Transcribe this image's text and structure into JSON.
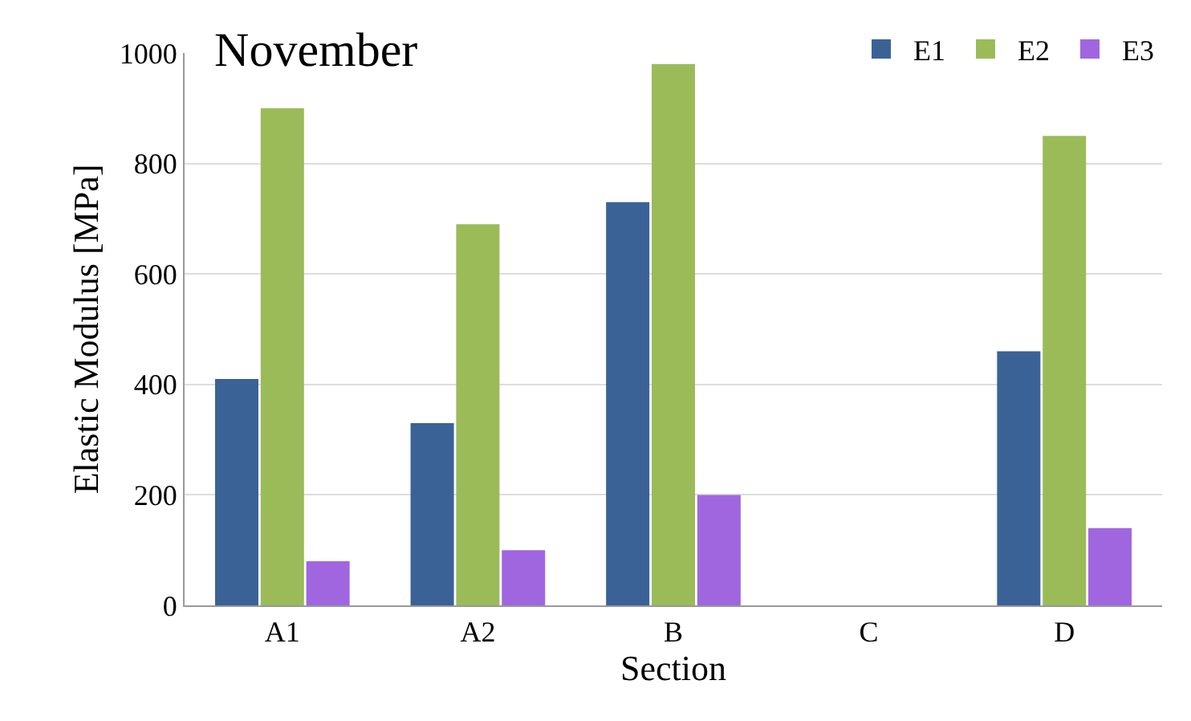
{
  "chart_data": {
    "type": "bar",
    "title": "November",
    "xlabel": "Section",
    "ylabel": "Elastic Modulus [MPa]",
    "categories": [
      "A1",
      "A2",
      "B",
      "C",
      "D"
    ],
    "series": [
      {
        "name": "E1",
        "color": "#3b6296",
        "values": [
          410,
          330,
          730,
          null,
          460
        ]
      },
      {
        "name": "E2",
        "color": "#9bbb59",
        "values": [
          900,
          690,
          980,
          null,
          850
        ]
      },
      {
        "name": "E3",
        "color": "#a066e0",
        "values": [
          80,
          100,
          200,
          null,
          140
        ]
      }
    ],
    "ylim": [
      0,
      1000
    ],
    "yticks": [
      0,
      200,
      400,
      600,
      800,
      1000
    ],
    "grid": "y",
    "legend": "top right"
  }
}
